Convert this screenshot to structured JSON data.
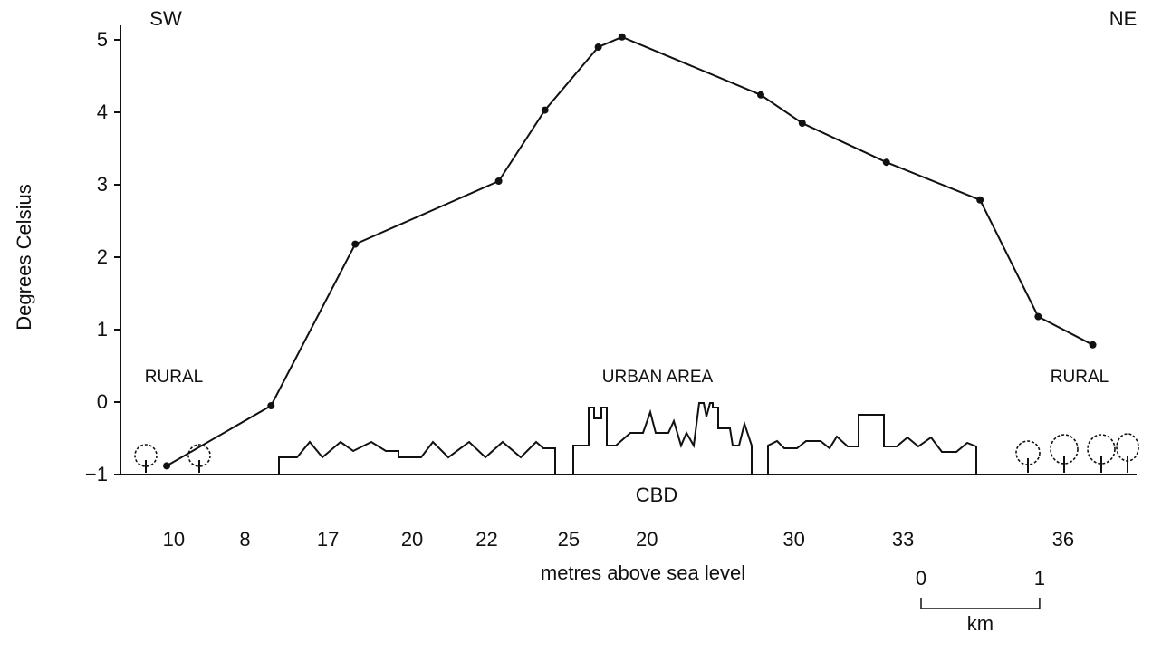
{
  "chart_data": {
    "type": "line",
    "y_label": "Degrees Celsius",
    "x": [
      0.39,
      1.27,
      1.98,
      3.19,
      3.58,
      4.03,
      4.23,
      5.4,
      5.75,
      6.46,
      7.25,
      7.74,
      8.2
    ],
    "values": [
      -0.88,
      -0.05,
      2.18,
      3.05,
      4.03,
      4.9,
      5.04,
      4.24,
      3.85,
      3.31,
      2.79,
      1.18,
      0.79
    ],
    "color": "#111111",
    "xlim": [
      0,
      8.57
    ],
    "ylim": [
      -1,
      5.2
    ],
    "yticks": [
      {
        "value": -1,
        "label": "−1"
      },
      0,
      1,
      2,
      3,
      4,
      5
    ],
    "left_direction": "SW",
    "right_direction": "NE",
    "rural_left": "RURAL",
    "urban": "URBAN AREA",
    "rural_right": "RURAL",
    "cbd": "CBD",
    "elevations": [
      {
        "value": 10,
        "x": 0.45
      },
      {
        "value": 8,
        "x": 1.05
      },
      {
        "value": 17,
        "x": 1.75
      },
      {
        "value": 20,
        "x": 2.46
      },
      {
        "value": 22,
        "x": 3.09
      },
      {
        "value": 25,
        "x": 3.78
      },
      {
        "value": 20,
        "x": 4.44
      },
      {
        "value": 30,
        "x": 5.68
      },
      {
        "value": 33,
        "x": 6.6
      },
      {
        "value": 36,
        "x": 7.95
      }
    ],
    "elevation_label": "metres above sea level",
    "scale_bar": {
      "ticks": [
        0,
        1
      ],
      "unit": "km"
    }
  }
}
